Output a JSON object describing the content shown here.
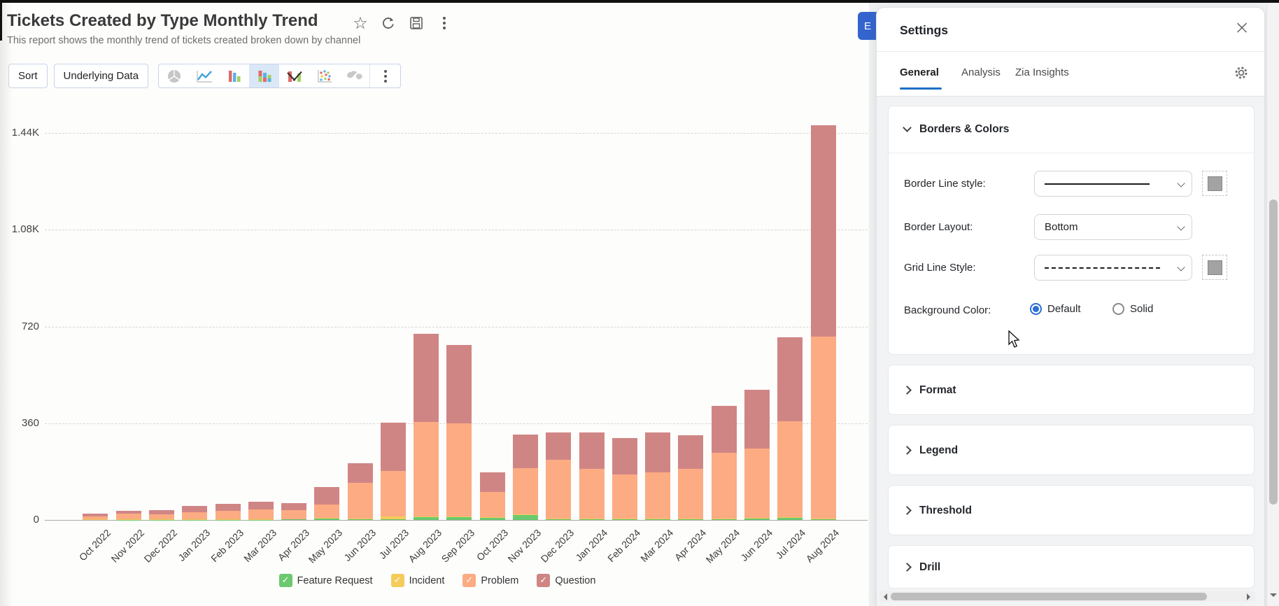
{
  "report": {
    "title": "Tickets Created by Type Monthly Trend",
    "subtitle": "This report shows the monthly trend of tickets created broken down by channel"
  },
  "toolbar": {
    "sort_label": "Sort",
    "underlying_data_label": "Underlying Data",
    "chart_types": [
      "pie",
      "line",
      "bar",
      "stacked-bar",
      "bar-line",
      "scatter",
      "map"
    ],
    "selected_chart_type": "stacked-bar"
  },
  "edit_button": {
    "visible_label": "E"
  },
  "settings": {
    "title": "Settings",
    "tabs": [
      {
        "label": "General",
        "active": true
      },
      {
        "label": "Analysis",
        "active": false
      },
      {
        "label": "Zia Insights",
        "active": false
      }
    ],
    "borders_colors": {
      "title": "Borders & Colors",
      "border_line_label": "Border Line style:",
      "border_line_value": "solid",
      "border_layout_label": "Border Layout:",
      "border_layout_value": "Bottom",
      "grid_line_label": "Grid Line Style:",
      "grid_line_value": "dashed",
      "background_color_label": "Background Color:",
      "bg_options": [
        {
          "label": "Default",
          "selected": true
        },
        {
          "label": "Solid",
          "selected": false
        }
      ]
    },
    "collapsed_sections": [
      "Format",
      "Legend",
      "Threshold",
      "Drill"
    ]
  },
  "chart_data": {
    "type": "bar",
    "subtype": "stacked-vertical",
    "title": "Tickets Created by Type Monthly Trend",
    "xlabel": "",
    "ylabel": "",
    "ylim": [
      0,
      1548
    ],
    "grid": "dashed-horizontal",
    "legend_position": "bottom",
    "y_ticks": [
      {
        "value": 0,
        "label": "0"
      },
      {
        "value": 360,
        "label": "360"
      },
      {
        "value": 720,
        "label": "720"
      },
      {
        "value": 1080,
        "label": "1.08K"
      },
      {
        "value": 1440,
        "label": "1.44K"
      }
    ],
    "categories": [
      "Oct 2022",
      "Nov 2022",
      "Dec 2022",
      "Jan 2023",
      "Feb 2023",
      "Mar 2023",
      "Apr 2023",
      "May 2023",
      "Jun 2023",
      "Jul 2023",
      "Aug 2023",
      "Sep 2023",
      "Oct 2023",
      "Nov 2023",
      "Dec 2023",
      "Jan 2024",
      "Feb 2024",
      "Mar 2024",
      "Apr 2024",
      "May 2024",
      "Jun 2024",
      "Jul 2024",
      "Aug 2024"
    ],
    "series": [
      {
        "name": "Feature Request",
        "color": "#6cc96f",
        "values": [
          0,
          1,
          1,
          1,
          1,
          1,
          2,
          5,
          3,
          2,
          10,
          10,
          8,
          17,
          3,
          2,
          2,
          2,
          3,
          3,
          5,
          8,
          3
        ]
      },
      {
        "name": "Incident",
        "color": "#f5cb5b",
        "values": [
          2,
          1,
          1,
          1,
          1,
          2,
          1,
          2,
          2,
          10,
          3,
          2,
          2,
          3,
          2,
          2,
          2,
          2,
          2,
          2,
          2,
          3,
          2
        ]
      },
      {
        "name": "Problem",
        "color": "#fcab83",
        "values": [
          10,
          21,
          20,
          26,
          32,
          36,
          34,
          50,
          134,
          170,
          352,
          348,
          95,
          174,
          218,
          185,
          165,
          172,
          184,
          244,
          258,
          355,
          678
        ]
      },
      {
        "name": "Question",
        "color": "#d08585",
        "values": [
          12,
          12,
          14,
          23,
          25,
          28,
          26,
          66,
          73,
          180,
          328,
          290,
          71,
          124,
          103,
          136,
          135,
          149,
          126,
          176,
          219,
          314,
          787
        ]
      }
    ]
  }
}
